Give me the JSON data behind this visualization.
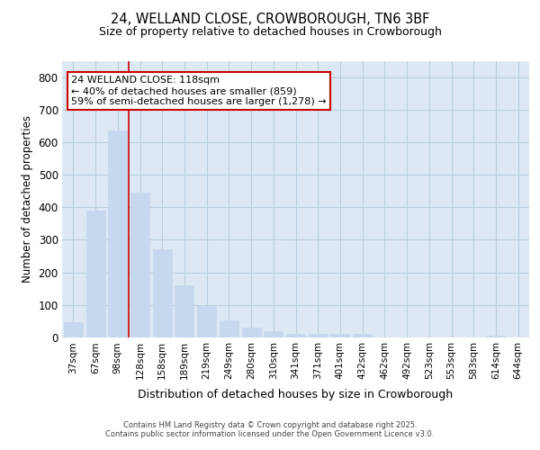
{
  "title_line1": "24, WELLAND CLOSE, CROWBOROUGH, TN6 3BF",
  "title_line2": "Size of property relative to detached houses in Crowborough",
  "xlabel": "Distribution of detached houses by size in Crowborough",
  "ylabel": "Number of detached properties",
  "bar_labels": [
    "37sqm",
    "67sqm",
    "98sqm",
    "128sqm",
    "158sqm",
    "189sqm",
    "219sqm",
    "249sqm",
    "280sqm",
    "310sqm",
    "341sqm",
    "371sqm",
    "401sqm",
    "432sqm",
    "462sqm",
    "492sqm",
    "523sqm",
    "553sqm",
    "583sqm",
    "614sqm",
    "644sqm"
  ],
  "bar_values": [
    47,
    390,
    635,
    445,
    270,
    160,
    98,
    52,
    30,
    18,
    10,
    10,
    10,
    10,
    0,
    0,
    0,
    0,
    0,
    5,
    0
  ],
  "bar_color": "#c5d8ed",
  "bar_edgecolor": "#c5d8ed",
  "grid_color": "#b8cfe0",
  "plot_bg_color": "#dce9f5",
  "fig_bg_color": "#ffffff",
  "vline_color": "#cc0000",
  "annotation_text": "24 WELLAND CLOSE: 118sqm\n← 40% of detached houses are smaller (859)\n59% of semi-detached houses are larger (1,278) →",
  "annotation_box_facecolor": "#ffffff",
  "annotation_box_edgecolor": "#cc0000",
  "footer_text": "Contains HM Land Registry data © Crown copyright and database right 2025.\nContains public sector information licensed under the Open Government Licence v3.0.",
  "ylim": [
    0,
    850
  ],
  "yticks": [
    0,
    100,
    200,
    300,
    400,
    500,
    600,
    700,
    800
  ],
  "vline_bar_index": 2.5
}
